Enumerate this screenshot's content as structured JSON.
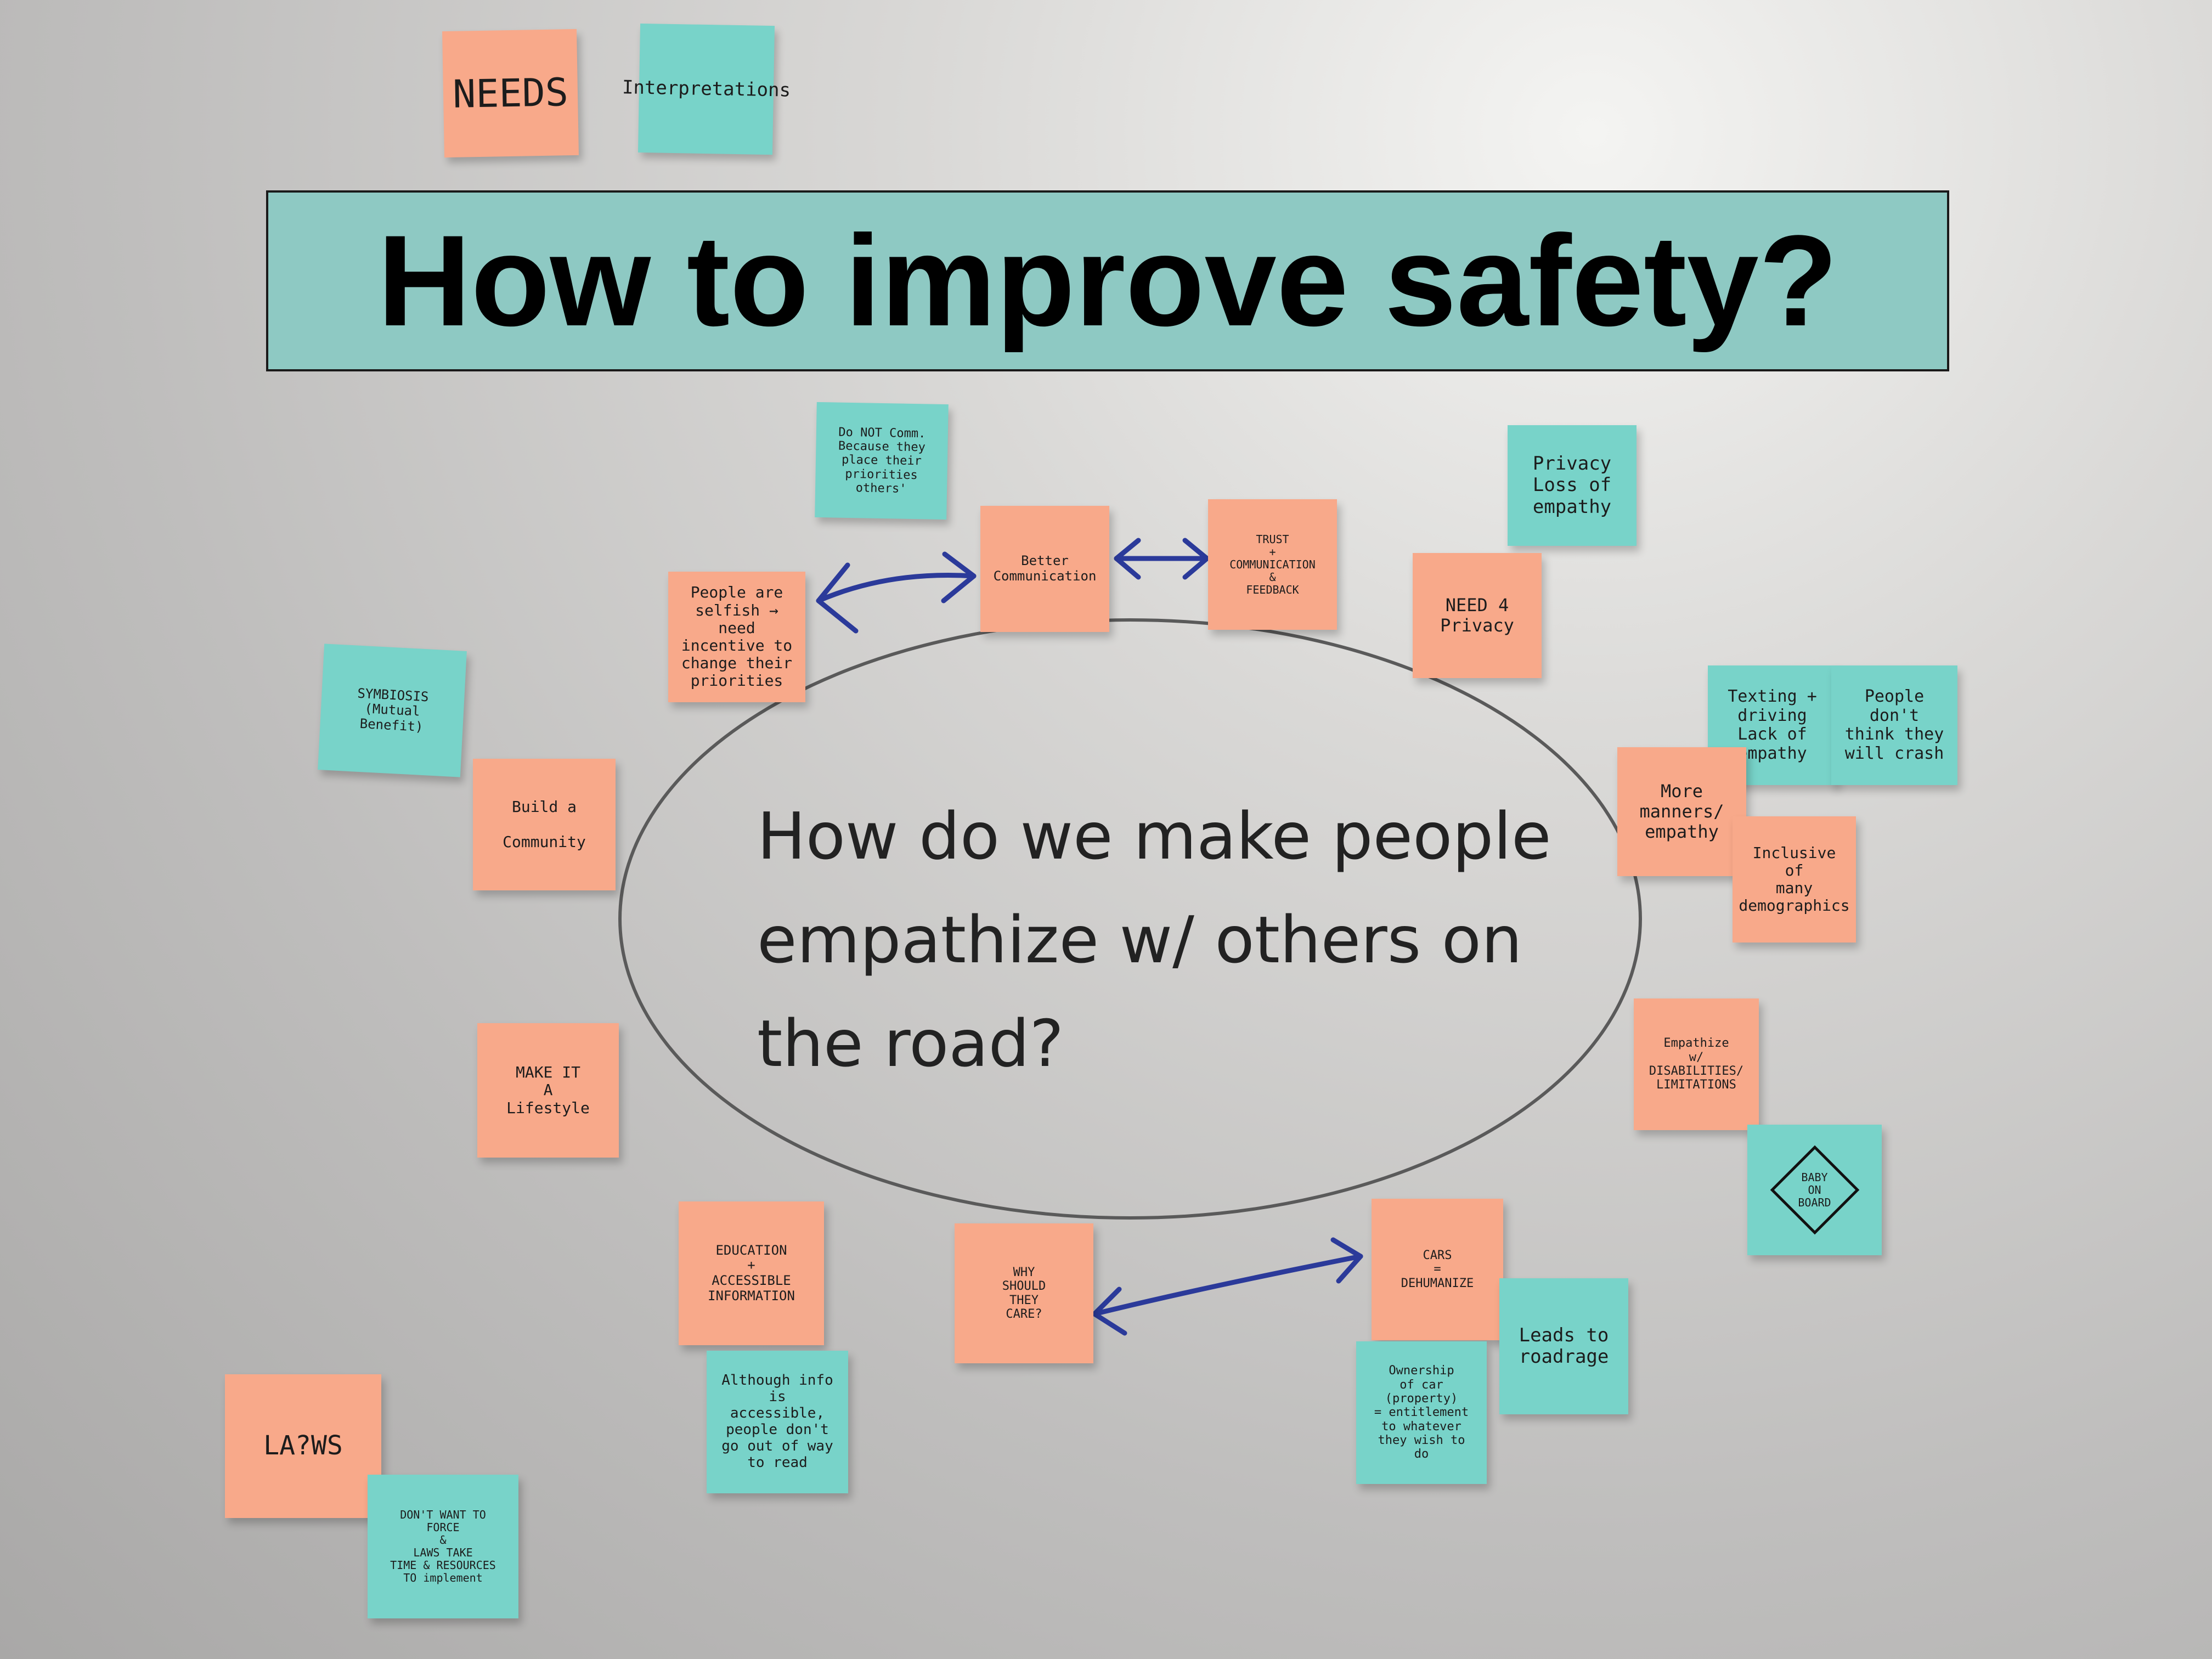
{
  "title_banner": "How to improve safety?",
  "question": "How do we make people\nempathize w/ others on\nthe road?",
  "legend": {
    "needs": "NEEDS",
    "interpretations": "Interpretations"
  },
  "notes": {
    "do_not_comm": "Do NOT Comm.\nBecause they\nplace their\npriorities\nothers'",
    "better_communication": "Better\nCommunication",
    "trust": "TRUST\n+\nCOMMUNICATION\n&\nFEEDBACK",
    "privacy_loss": "Privacy\nLoss of\nempathy",
    "need_privacy": "NEED 4\nPrivacy",
    "people_selfish": "People are\nselfish → need\nincentive to\nchange their\npriorities",
    "symbiosis": "SYMBIOSIS\n(Mutual\nBenefit)",
    "build_community": "Build a\n\nCommunity",
    "texting_driving": "Texting +\ndriving\nLack of\nempathy",
    "people_dont_crash": "People don't\nthink they\nwill crash",
    "more_manners": "More\nmanners/\nempathy",
    "inclusive": "Inclusive\nof\nmany\ndemographics",
    "make_lifestyle": "MAKE IT\nA\nLifestyle",
    "empathize_disabilities": "Empathize\nw/\nDISABILITIES/\nLIMITATIONS",
    "baby_on_board": "BABY\nON\nBOARD",
    "education": "EDUCATION\n+\nACCESSIBLE\nINFORMATION",
    "why_care": "WHY\nSHOULD\nTHEY\nCARE?",
    "cars_dehumanize": "CARS\n=\nDEHUMANIZE",
    "leads_roadrage": "Leads to\nroadrage",
    "ownership": "Ownership\nof car (property)\n= entitlement\nto whatever\nthey wish to do",
    "although_info": "Although info\nis accessible,\npeople don't\ngo out of way\nto read",
    "laws": "LA?WS",
    "dont_force": "DON'T WANT TO\nFORCE\n&\nLAWS TAKE\nTIME & RESOURCES\nTO implement"
  },
  "colors": {
    "orange_note": "#f8a98a",
    "teal_note": "#78d3c9",
    "banner": "#8ec9c3",
    "marker_blue": "#2b3a9a"
  }
}
